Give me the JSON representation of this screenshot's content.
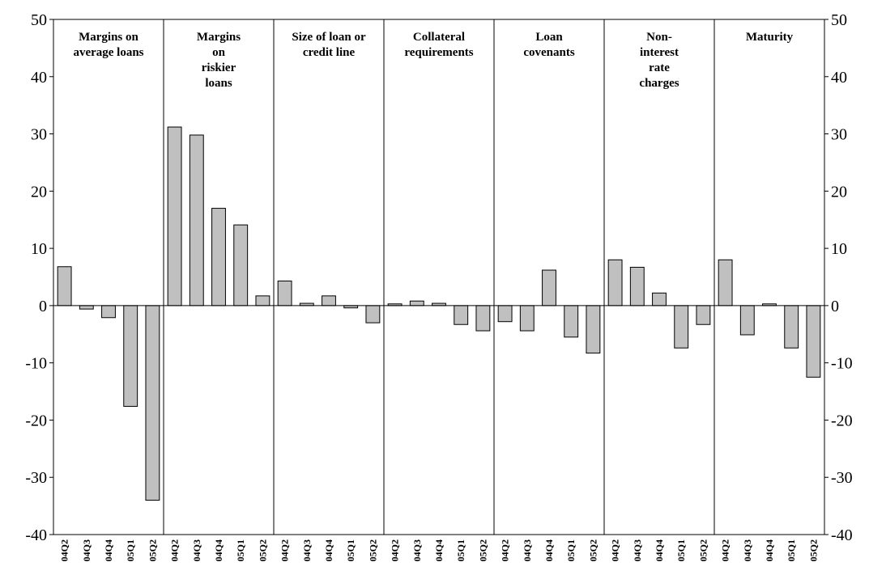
{
  "chart_data": {
    "type": "bar",
    "title": "",
    "xlabel": "",
    "ylabel": "",
    "ylim": [
      -40,
      50
    ],
    "yticks": [
      -40,
      -30,
      -20,
      -10,
      0,
      10,
      20,
      30,
      40,
      50
    ],
    "ytick_labels": [
      "-40",
      "-30",
      "-20",
      "-10",
      "0",
      "10",
      "20",
      "30",
      "40",
      "50"
    ],
    "y_axis_both_sides": true,
    "grid": false,
    "legend": "none",
    "bar_color": "#c0c0c0",
    "categories": [
      "04Q2",
      "04Q3",
      "04Q4",
      "05Q1",
      "05Q2"
    ],
    "panels": [
      {
        "name_lines": [
          "Margins on",
          "average loans"
        ],
        "values": [
          6.8,
          -0.6,
          -2.1,
          -17.6,
          -34.0
        ]
      },
      {
        "name_lines": [
          "Margins",
          "on",
          "riskier",
          "loans"
        ],
        "values": [
          31.2,
          29.8,
          17.0,
          14.1,
          1.7
        ]
      },
      {
        "name_lines": [
          "Size of loan or",
          "credit line"
        ],
        "values": [
          4.3,
          0.4,
          1.7,
          -0.4,
          -3.0
        ]
      },
      {
        "name_lines": [
          "Collateral",
          "requirements"
        ],
        "values": [
          0.3,
          0.8,
          0.4,
          -3.3,
          -4.4
        ]
      },
      {
        "name_lines": [
          "Loan",
          "covenants"
        ],
        "values": [
          -2.8,
          -4.4,
          6.2,
          -5.5,
          -8.3
        ]
      },
      {
        "name_lines": [
          "Non-",
          "interest",
          "rate",
          "charges"
        ],
        "values": [
          8.0,
          6.7,
          2.2,
          -7.4,
          -3.3
        ]
      },
      {
        "name_lines": [
          "Maturity"
        ],
        "values": [
          8.0,
          -5.1,
          0.3,
          -7.4,
          -12.5
        ]
      }
    ]
  }
}
